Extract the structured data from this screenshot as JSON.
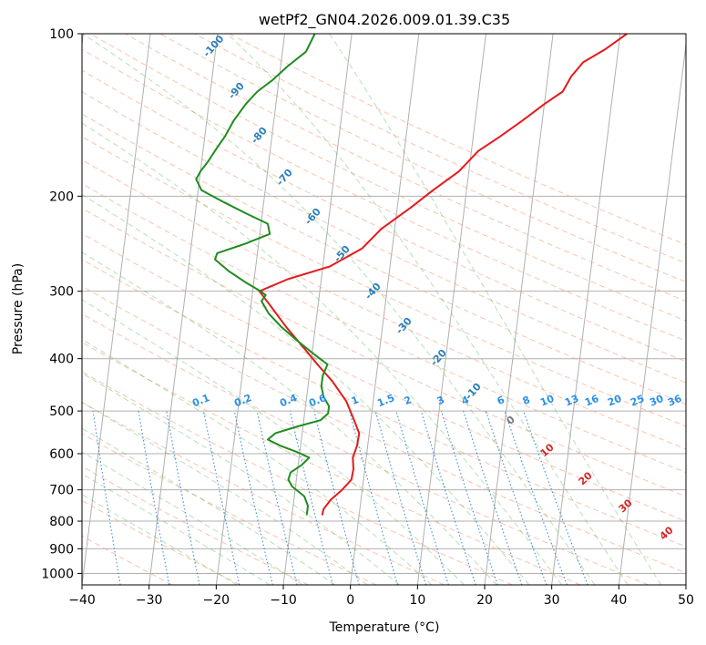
{
  "chart_data": {
    "type": "line",
    "subtype": "skew-t log-p",
    "title": "wetPf2_GN04.2026.009.01.39.C35",
    "xlabel": "Temperature (°C)",
    "ylabel": "Pressure (hPa)",
    "xlim": [
      -40,
      50
    ],
    "ylim": [
      1050,
      100
    ],
    "y_scale": "log",
    "grid": true,
    "x_ticks": [
      -40,
      -30,
      -20,
      -10,
      0,
      10,
      20,
      30,
      40,
      50
    ],
    "y_ticks": [
      1000,
      900,
      800,
      700,
      600,
      500,
      400,
      300,
      200,
      100
    ],
    "series": [
      {
        "color": "#e41a1c",
        "pressure": [
          780,
          760,
          730,
          700,
          670,
          640,
          610,
          580,
          550,
          520,
          480,
          440,
          410,
          380,
          350,
          320,
          300,
          285,
          270,
          250,
          230,
          210,
          195,
          180,
          165,
          155,
          145,
          135,
          128,
          120,
          113,
          107,
          100
        ],
        "temperature": [
          -5.5,
          -5.4,
          -4.5,
          -3.0,
          -1.8,
          -1.7,
          -2.0,
          -1.6,
          -1.5,
          -2.5,
          -4.0,
          -6.5,
          -9.0,
          -11.5,
          -14.3,
          -17.0,
          -19.0,
          -15.0,
          -9.0,
          -4.5,
          -2.0,
          2.0,
          5.0,
          8.5,
          11.0,
          14.0,
          17.0,
          20.0,
          22.5,
          23.5,
          25.0,
          28.0,
          31.0
        ]
      },
      {
        "color": "#1e8c1e",
        "pressure": [
          780,
          750,
          720,
          690,
          670,
          650,
          630,
          610,
          595,
          580,
          565,
          550,
          535,
          520,
          505,
          490,
          470,
          450,
          430,
          410,
          390,
          370,
          350,
          330,
          313,
          305,
          300,
          290,
          275,
          262,
          255,
          245,
          235,
          225,
          215,
          205,
          195,
          186,
          180,
          172,
          163,
          155,
          145,
          135,
          128,
          122,
          115,
          108,
          100
        ],
        "temperature": [
          -7.8,
          -7.8,
          -8.5,
          -10.5,
          -11.2,
          -11.0,
          -9.5,
          -8.5,
          -10.5,
          -13.0,
          -15.0,
          -14.0,
          -11.0,
          -7.5,
          -6.5,
          -6.5,
          -7.5,
          -8.0,
          -8.0,
          -7.5,
          -10.0,
          -12.5,
          -15.0,
          -17.2,
          -18.5,
          -18.0,
          -18.8,
          -21.0,
          -24.0,
          -26.2,
          -26.0,
          -22.0,
          -18.5,
          -19.0,
          -22.5,
          -26.0,
          -29.5,
          -30.5,
          -30.0,
          -29.0,
          -28.0,
          -27.0,
          -26.0,
          -24.5,
          -23.0,
          -21.0,
          -19.0,
          -16.5,
          -15.5
        ]
      }
    ],
    "dry_adiabat_labels": [
      "-100",
      "-90",
      "-80",
      "-70",
      "-60",
      "-50",
      "-40",
      "-30",
      "-20",
      "-10"
    ],
    "mixing_ratio_labels": [
      "0.1",
      "0.2",
      "0.4",
      "0.6",
      "1",
      "1.5",
      "2",
      "3",
      "4",
      "6",
      "8",
      "10",
      "13",
      "16",
      "20",
      "25",
      "30",
      "36"
    ],
    "moist_adiabat_labels": [
      "0",
      "10",
      "20",
      "30",
      "40"
    ]
  }
}
